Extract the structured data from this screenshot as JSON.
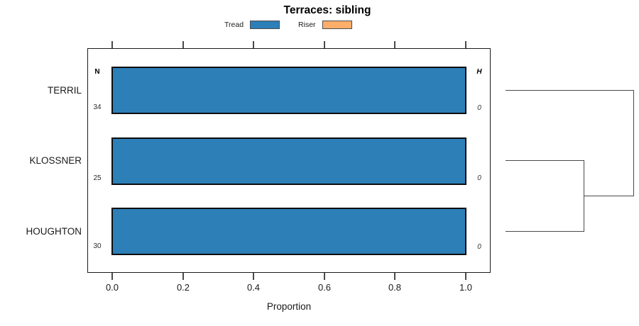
{
  "chart_data": {
    "type": "bar",
    "orientation": "horizontal",
    "stacked": true,
    "title": "Terraces: sibling",
    "xlabel": "Proportion",
    "ylabel": "",
    "xlim": [
      0,
      1
    ],
    "x_ticks": [
      0.0,
      0.2,
      0.4,
      0.6,
      0.8,
      1.0
    ],
    "x_tick_labels": [
      "0.0",
      "0.2",
      "0.4",
      "0.6",
      "0.8",
      "1.0"
    ],
    "grid": false,
    "categories": [
      "TERRIL",
      "KLOSSNER",
      "HOUGHTON"
    ],
    "series": [
      {
        "name": "Tread",
        "color": "#2d7fb8",
        "values": [
          1.0,
          1.0,
          1.0
        ]
      },
      {
        "name": "Riser",
        "color": "#fdae6b",
        "values": [
          0.0,
          0.0,
          0.0
        ]
      }
    ],
    "columns": {
      "n_header": "N",
      "n_values": [
        "34",
        "25",
        "30"
      ],
      "h_header": "H",
      "h_values": [
        "0",
        "0",
        "0"
      ]
    },
    "legend": {
      "position": "top",
      "entries": [
        {
          "label": "Tread",
          "color": "#2d7fb8"
        },
        {
          "label": "Riser",
          "color": "#fdae6b"
        }
      ]
    },
    "dendrogram": {
      "side": "right",
      "merges": [
        {
          "members": [
            "KLOSSNER",
            "HOUGHTON"
          ],
          "order": 1
        },
        {
          "members": [
            "TERRIL",
            "KLOSSNER+HOUGHTON"
          ],
          "order": 2
        }
      ]
    }
  }
}
